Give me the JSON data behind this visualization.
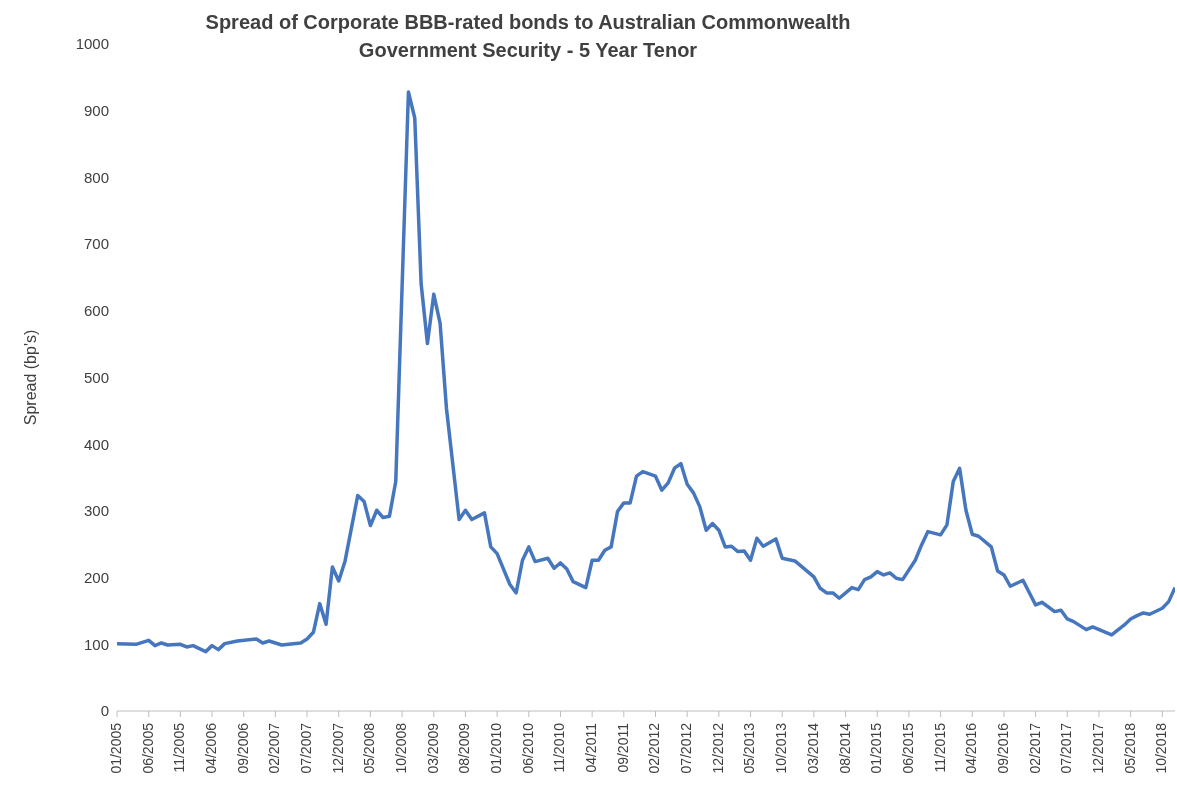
{
  "chart_data": {
    "type": "line",
    "title": "Spread of Corporate BBB-rated bonds to Australian Commonwealth Government Security - 5 Year Tenor",
    "ylabel": "Spread (bp's)",
    "x": [
      "2005-01",
      "2005-04",
      "2005-06",
      "2005-07",
      "2005-08",
      "2005-09",
      "2005-11",
      "2005-12",
      "2006-01",
      "2006-03",
      "2006-04",
      "2006-05",
      "2006-06",
      "2006-08",
      "2006-11",
      "2006-12",
      "2007-01",
      "2007-03",
      "2007-06",
      "2007-07",
      "2007-08",
      "2007-09",
      "2007-10",
      "2007-11",
      "2007-12",
      "2008-01",
      "2008-03",
      "2008-04",
      "2008-05",
      "2008-06",
      "2008-07",
      "2008-08",
      "2008-09",
      "2008-11",
      "2008-12",
      "2009-01",
      "2009-02",
      "2009-03",
      "2009-04",
      "2009-05",
      "2009-07",
      "2009-08",
      "2009-09",
      "2009-11",
      "2009-12",
      "2010-01",
      "2010-03",
      "2010-04",
      "2010-05",
      "2010-06",
      "2010-07",
      "2010-09",
      "2010-10",
      "2010-11",
      "2010-12",
      "2011-01",
      "2011-03",
      "2011-04",
      "2011-05",
      "2011-06",
      "2011-07",
      "2011-08",
      "2011-09",
      "2011-10",
      "2011-11",
      "2011-12",
      "2012-02",
      "2012-03",
      "2012-04",
      "2012-05",
      "2012-06",
      "2012-07",
      "2012-08",
      "2012-09",
      "2012-10",
      "2012-11",
      "2012-12",
      "2013-01",
      "2013-02",
      "2013-03",
      "2013-04",
      "2013-05",
      "2013-06",
      "2013-07",
      "2013-09",
      "2013-10",
      "2013-12",
      "2014-03",
      "2014-04",
      "2014-05",
      "2014-06",
      "2014-07",
      "2014-09",
      "2014-10",
      "2014-11",
      "2014-12",
      "2015-01",
      "2015-02",
      "2015-03",
      "2015-04",
      "2015-05",
      "2015-07",
      "2015-08",
      "2015-09",
      "2015-11",
      "2015-12",
      "2016-01",
      "2016-02",
      "2016-03",
      "2016-04",
      "2016-05",
      "2016-07",
      "2016-08",
      "2016-09",
      "2016-10",
      "2016-12",
      "2017-02",
      "2017-03",
      "2017-05",
      "2017-06",
      "2017-07",
      "2017-08",
      "2017-10",
      "2017-11",
      "2018-02",
      "2018-04",
      "2018-05",
      "2018-06",
      "2018-07",
      "2018-08",
      "2018-10",
      "2018-11",
      "2018-12"
    ],
    "series": [
      {
        "color": "#4677be",
        "values": [
          101,
          100,
          106,
          98,
          102,
          99,
          100,
          96,
          98,
          89,
          98,
          92,
          101,
          105,
          108,
          102,
          105,
          99,
          102,
          108,
          118,
          161,
          130,
          216,
          195,
          225,
          323,
          314,
          278,
          301,
          290,
          292,
          344,
          928,
          889,
          641,
          551,
          625,
          581,
          454,
          287,
          301,
          287,
          297,
          246,
          236,
          190,
          177,
          226,
          246,
          224,
          229,
          214,
          222,
          213,
          194,
          185,
          226,
          226,
          241,
          246,
          299,
          312,
          312,
          352,
          359,
          352,
          331,
          342,
          364,
          371,
          340,
          327,
          306,
          271,
          281,
          271,
          246,
          247,
          239,
          240,
          226,
          259,
          247,
          258,
          229,
          225,
          201,
          184,
          177,
          177,
          169,
          185,
          182,
          197,
          201,
          209,
          204,
          207,
          199,
          197,
          226,
          249,
          269,
          264,
          279,
          344,
          364,
          301,
          265,
          262,
          246,
          210,
          204,
          187,
          196,
          159,
          163,
          149,
          151,
          138,
          134,
          122,
          126,
          114,
          129,
          138,
          143,
          147,
          145,
          154,
          164,
          185
        ]
      }
    ],
    "xlim": [
      "2005-01",
      "2018-12"
    ],
    "xticks": [
      {
        "value": "2005-01",
        "label": "01/2005"
      },
      {
        "value": "2005-06",
        "label": "06/2005"
      },
      {
        "value": "2005-11",
        "label": "11/2005"
      },
      {
        "value": "2006-04",
        "label": "04/2006"
      },
      {
        "value": "2006-09",
        "label": "09/2006"
      },
      {
        "value": "2007-02",
        "label": "02/2007"
      },
      {
        "value": "2007-07",
        "label": "07/2007"
      },
      {
        "value": "2007-12",
        "label": "12/2007"
      },
      {
        "value": "2008-05",
        "label": "05/2008"
      },
      {
        "value": "2008-10",
        "label": "10/2008"
      },
      {
        "value": "2009-03",
        "label": "03/2009"
      },
      {
        "value": "2009-08",
        "label": "08/2009"
      },
      {
        "value": "2010-01",
        "label": "01/2010"
      },
      {
        "value": "2010-06",
        "label": "06/2010"
      },
      {
        "value": "2010-11",
        "label": "11/2010"
      },
      {
        "value": "2011-04",
        "label": "04/2011"
      },
      {
        "value": "2011-09",
        "label": "09/2011"
      },
      {
        "value": "2012-02",
        "label": "02/2012"
      },
      {
        "value": "2012-07",
        "label": "07/2012"
      },
      {
        "value": "2012-12",
        "label": "12/2012"
      },
      {
        "value": "2013-05",
        "label": "05/2013"
      },
      {
        "value": "2013-10",
        "label": "10/2013"
      },
      {
        "value": "2014-03",
        "label": "03/2014"
      },
      {
        "value": "2014-08",
        "label": "08/2014"
      },
      {
        "value": "2015-01",
        "label": "01/2015"
      },
      {
        "value": "2015-06",
        "label": "06/2015"
      },
      {
        "value": "2015-11",
        "label": "11/2015"
      },
      {
        "value": "2016-04",
        "label": "04/2016"
      },
      {
        "value": "2016-09",
        "label": "09/2016"
      },
      {
        "value": "2017-02",
        "label": "02/2017"
      },
      {
        "value": "2017-07",
        "label": "07/2017"
      },
      {
        "value": "2017-12",
        "label": "12/2017"
      },
      {
        "value": "2018-05",
        "label": "05/2018"
      },
      {
        "value": "2018-10",
        "label": "10/2018"
      }
    ],
    "ylim": [
      0,
      1000
    ],
    "yticks": [
      0,
      100,
      200,
      300,
      400,
      500,
      600,
      700,
      800,
      900,
      1000
    ]
  }
}
